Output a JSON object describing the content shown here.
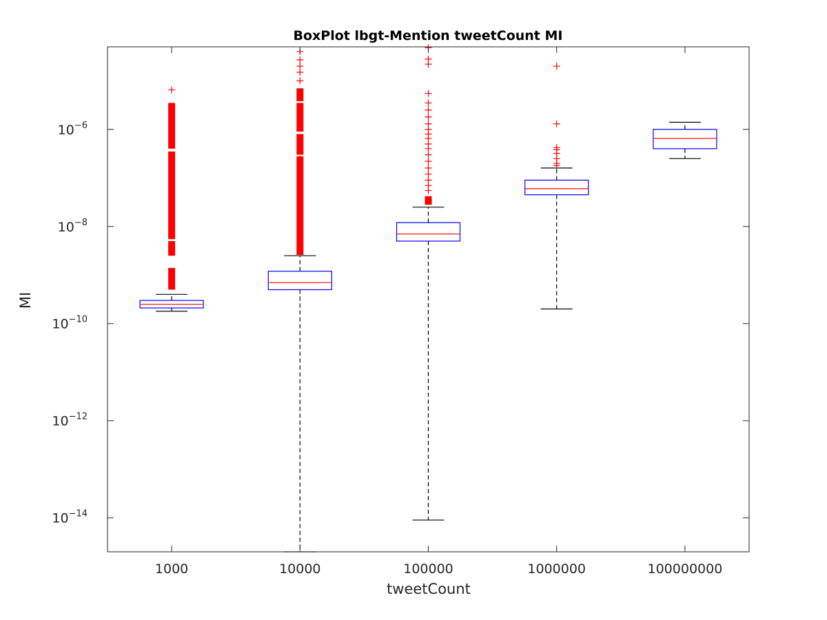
{
  "chart_data": {
    "type": "boxplot",
    "title": "BoxPlot lbgt-Mention tweetCount MI",
    "xlabel": "tweetCount",
    "ylabel": "MI",
    "yscale": "log",
    "ylim": [
      2e-15,
      5e-05
    ],
    "yticks": [
      {
        "value": 1e-14,
        "base": "10",
        "exp": "−14"
      },
      {
        "value": 1e-12,
        "base": "10",
        "exp": "−12"
      },
      {
        "value": 1e-10,
        "base": "10",
        "exp": "−10"
      },
      {
        "value": 1e-08,
        "base": "10",
        "exp": "−8"
      },
      {
        "value": 1e-06,
        "base": "10",
        "exp": "−6"
      }
    ],
    "categories": [
      "1000",
      "10000",
      "100000",
      "1000000",
      "100000000"
    ],
    "colors": {
      "box": "#0000ff",
      "median": "#ff0000",
      "whisker": "#000000",
      "outlier": "#ff0000"
    },
    "boxes": [
      {
        "category": "1000",
        "whisker_low": 1.8e-10,
        "q1": 2.1e-10,
        "median": 2.5e-10,
        "q3": 3e-10,
        "whisker_high": 4e-10,
        "outlier_bands": [
          [
            5e-10,
            1.4e-09
          ],
          [
            2.5e-09,
            5e-09
          ],
          [
            5.5e-09,
            3.5e-07
          ],
          [
            4e-07,
            3.5e-06
          ]
        ],
        "outliers": [
          6.5e-06
        ]
      },
      {
        "category": "10000",
        "whisker_low": 2e-15,
        "q1": 5e-10,
        "median": 7e-10,
        "q3": 1.2e-09,
        "whisker_high": 2.5e-09,
        "outlier_bands": [
          [
            2.6e-09,
            2.8e-07
          ],
          [
            3e-07,
            8e-07
          ],
          [
            9e-07,
            3.5e-06
          ],
          [
            3.8e-06,
            7e-06
          ]
        ],
        "outliers": [
          1e-05,
          1.5e-05,
          2e-05,
          2.7e-05,
          4e-05
        ]
      },
      {
        "category": "100000",
        "whisker_low": 9e-15,
        "q1": 5e-09,
        "median": 7e-09,
        "q3": 1.2e-08,
        "whisker_high": 2.5e-08,
        "outlier_bands": [
          [
            2.8e-08,
            4.2e-08
          ]
        ],
        "outliers": [
          5.5e-08,
          7e-08,
          9e-08,
          1.2e-07,
          1.6e-07,
          2.2e-07,
          3e-07,
          4e-07,
          5e-07,
          6.5e-07,
          8e-07,
          1e-06,
          1.3e-06,
          1.8e-06,
          2.5e-06,
          3.5e-06,
          5.5e-06,
          2.2e-05,
          2.8e-05,
          4.8e-05
        ]
      },
      {
        "category": "1000000",
        "whisker_low": 2e-10,
        "q1": 4.5e-08,
        "median": 6e-08,
        "q3": 9e-08,
        "whisker_high": 1.6e-07,
        "outlier_bands": [],
        "outliers": [
          1.8e-07,
          2e-07,
          2.5e-07,
          3.2e-07,
          3.8e-07,
          4.2e-07,
          1.3e-06,
          2e-05
        ]
      },
      {
        "category": "100000000",
        "whisker_low": 2.5e-07,
        "q1": 4e-07,
        "median": 6.5e-07,
        "q3": 1e-06,
        "whisker_high": 1.4e-06,
        "outlier_bands": [],
        "outliers": []
      }
    ]
  }
}
